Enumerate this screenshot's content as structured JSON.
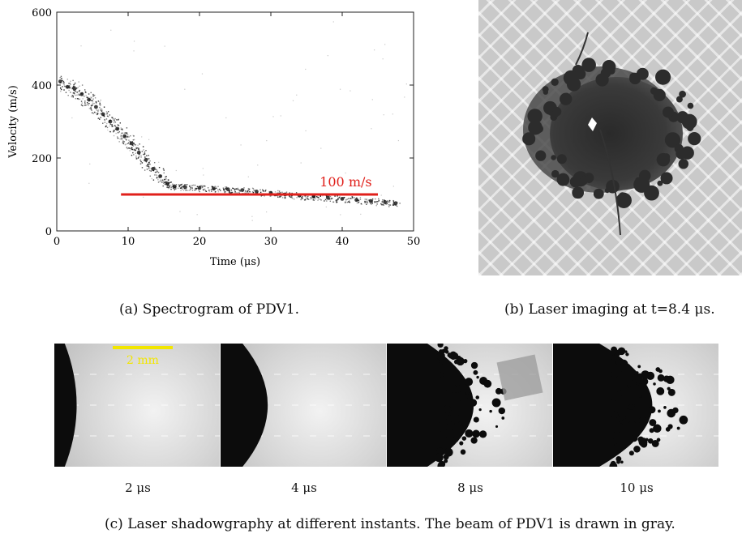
{
  "figure": {
    "caption_a": "(a) Spectrogram of PDV1.",
    "caption_b": "(b) Laser imaging at t=8.4 μs.",
    "caption_c": "(c) Laser shadowgraphy at different instants. The beam of PDV1 is drawn in gray.",
    "scale_bar_label": "2 mm",
    "shadow_frames": [
      {
        "label": "2 μs",
        "front": 0.18
      },
      {
        "label": "4 μs",
        "front": 0.38
      },
      {
        "label": "8 μs",
        "front": 0.7
      },
      {
        "label": "10 μs",
        "front": 0.8
      }
    ]
  },
  "chart_data": {
    "type": "scatter",
    "title": "",
    "xlabel": "Time (μs)",
    "ylabel": "Velocity (m/s)",
    "xlim": [
      0,
      50
    ],
    "ylim": [
      0,
      600
    ],
    "xticks": [
      0,
      10,
      20,
      30,
      40,
      50
    ],
    "yticks": [
      0,
      200,
      400,
      600
    ],
    "grid": false,
    "reference_line": {
      "label": "100 m/s",
      "y": 100,
      "x": [
        9,
        45
      ],
      "color": "#e0201b"
    },
    "series": [
      {
        "points": [
          [
            0.5,
            410
          ],
          [
            1.5,
            395
          ],
          [
            2.5,
            390
          ],
          [
            3.5,
            375
          ],
          [
            4.5,
            360
          ],
          [
            5.5,
            340
          ],
          [
            6.5,
            320
          ],
          [
            7.5,
            300
          ],
          [
            8.5,
            280
          ],
          [
            9.5,
            260
          ],
          [
            10.5,
            240
          ],
          [
            11.5,
            215
          ],
          [
            12.5,
            195
          ],
          [
            13.5,
            170
          ],
          [
            14.5,
            150
          ],
          [
            15.5,
            130
          ],
          [
            16.5,
            122
          ],
          [
            18,
            120
          ],
          [
            20,
            118
          ],
          [
            22,
            116
          ],
          [
            24,
            114
          ],
          [
            26,
            112
          ],
          [
            28,
            108
          ],
          [
            30,
            104
          ],
          [
            32,
            100
          ],
          [
            34,
            97
          ],
          [
            36,
            94
          ],
          [
            38,
            91
          ],
          [
            40,
            88
          ],
          [
            42,
            85
          ],
          [
            44,
            82
          ],
          [
            46,
            79
          ],
          [
            47.5,
            76
          ]
        ]
      }
    ]
  }
}
